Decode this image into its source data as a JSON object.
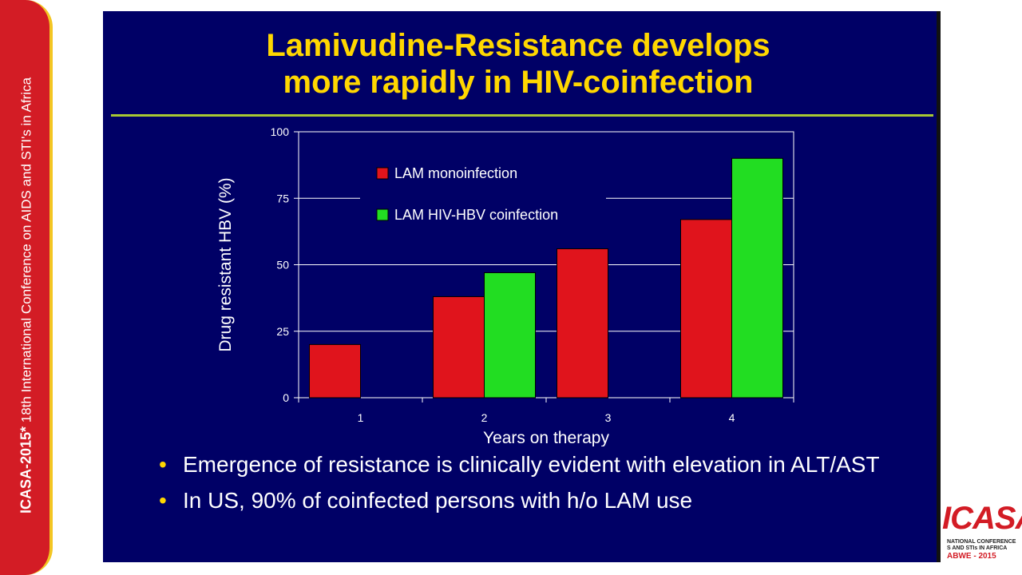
{
  "sidebar": {
    "brand": "ICASA-2015*",
    "text": " 18th International Conference on AIDS and STI's in Africa",
    "color": "#d31c25"
  },
  "slide": {
    "title_line1": "Lamivudine-Resistance develops",
    "title_line2": "more rapidly in HIV-coinfection",
    "bullets": [
      "Emergence of resistance is clinically evident with elevation in ALT/AST",
      "In US, 90% of coinfected persons with h/o LAM use"
    ],
    "background": "#000066",
    "title_color": "#ffd700"
  },
  "logo": {
    "word": "ICASA",
    "line1": "NATIONAL CONFERENCE",
    "line2": "S AND STIs IN AFRICA",
    "sub": "ABWE - 2015"
  },
  "chart_data": {
    "type": "bar",
    "categories": [
      "1",
      "2",
      "3",
      "4"
    ],
    "series": [
      {
        "name": "LAM monoinfection",
        "values": [
          20,
          38,
          56,
          67
        ],
        "color": "#e0141c"
      },
      {
        "name": "LAM HIV-HBV coinfection",
        "values": [
          null,
          47,
          null,
          90
        ],
        "color": "#22dd22"
      }
    ],
    "xlabel": "Years on therapy",
    "ylabel": "Drug resistant HBV (%)",
    "ylim": [
      0,
      100
    ],
    "yticks": [
      0,
      25,
      50,
      75,
      100
    ],
    "grid": true,
    "legend_position": "top-left"
  }
}
